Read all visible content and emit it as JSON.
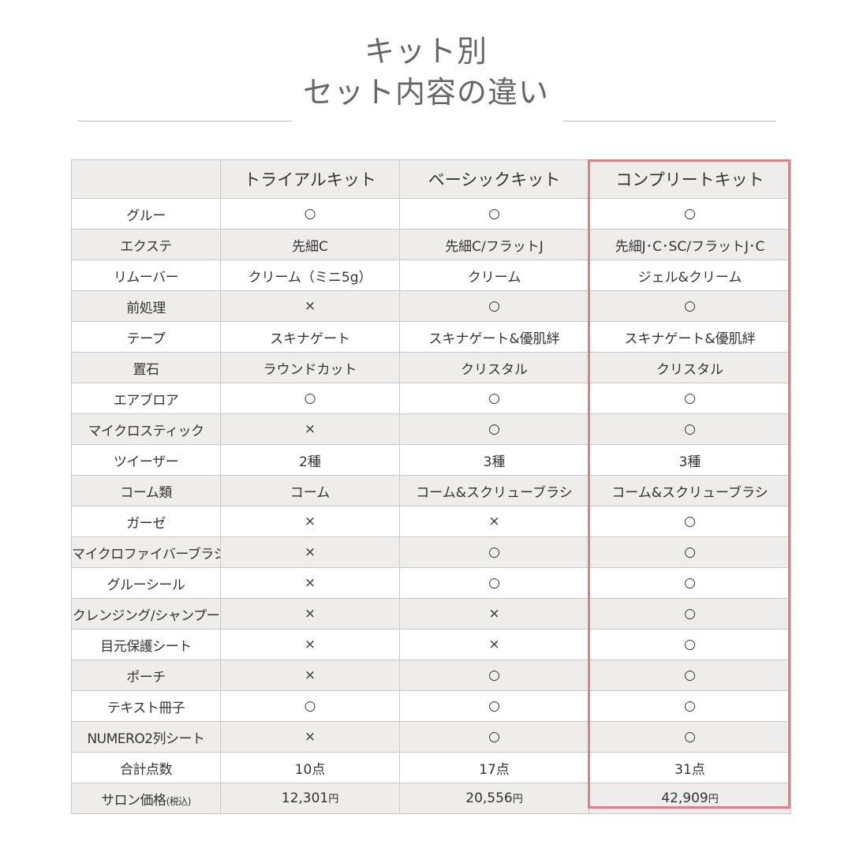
{
  "title": {
    "line1": "キット別",
    "line2": "セット内容の違い"
  },
  "table": {
    "header": [
      "",
      "トライアルキット",
      "ベーシックキット",
      "コンプリートキット"
    ],
    "rows": [
      {
        "label": "グルー",
        "values": [
          "○",
          "○",
          "○"
        ]
      },
      {
        "label": "エクステ",
        "values": [
          "先細C",
          "先細C/フラットJ",
          "先細J･C･SC/フラットJ･C"
        ]
      },
      {
        "label": "リムーバー",
        "values": [
          "クリーム（ミニ5g）",
          "クリーム",
          "ジェル&クリーム"
        ]
      },
      {
        "label": "前処理",
        "values": [
          "×",
          "○",
          "○"
        ]
      },
      {
        "label": "テープ",
        "values": [
          "スキナゲート",
          "スキナゲート&優肌絆",
          "スキナゲート&優肌絆"
        ]
      },
      {
        "label": "置石",
        "values": [
          "ラウンドカット",
          "クリスタル",
          "クリスタル"
        ]
      },
      {
        "label": "エアブロア",
        "values": [
          "○",
          "○",
          "○"
        ]
      },
      {
        "label": "マイクロスティック",
        "values": [
          "×",
          "○",
          "○"
        ]
      },
      {
        "label": "ツイーザー",
        "values": [
          "2種",
          "3種",
          "3種"
        ]
      },
      {
        "label": "コーム類",
        "values": [
          "コーム",
          "コーム&スクリューブラシ",
          "コーム&スクリューブラシ"
        ]
      },
      {
        "label": "ガーゼ",
        "values": [
          "×",
          "×",
          "○"
        ]
      },
      {
        "label": "マイクロファイバーブラシ",
        "values": [
          "×",
          "○",
          "○"
        ]
      },
      {
        "label": "グルーシール",
        "values": [
          "×",
          "○",
          "○"
        ]
      },
      {
        "label": "クレンジング/シャンプー",
        "values": [
          "×",
          "×",
          "○"
        ]
      },
      {
        "label": "目元保護シート",
        "values": [
          "×",
          "×",
          "○"
        ]
      },
      {
        "label": "ポーチ",
        "values": [
          "×",
          "○",
          "○"
        ]
      },
      {
        "label": "テキスト冊子",
        "values": [
          "○",
          "○",
          "○"
        ]
      },
      {
        "label": "NUMERO2列シート",
        "values": [
          "×",
          "○",
          "○"
        ]
      },
      {
        "label": "合計点数",
        "values": [
          "10点",
          "17点",
          "31点"
        ]
      }
    ],
    "price_row": {
      "label": "サロン価格",
      "label_note": "(税込)",
      "values": [
        "12,301",
        "20,556",
        "42,909"
      ],
      "currency": "円"
    }
  },
  "highlight_color": "#d98386"
}
